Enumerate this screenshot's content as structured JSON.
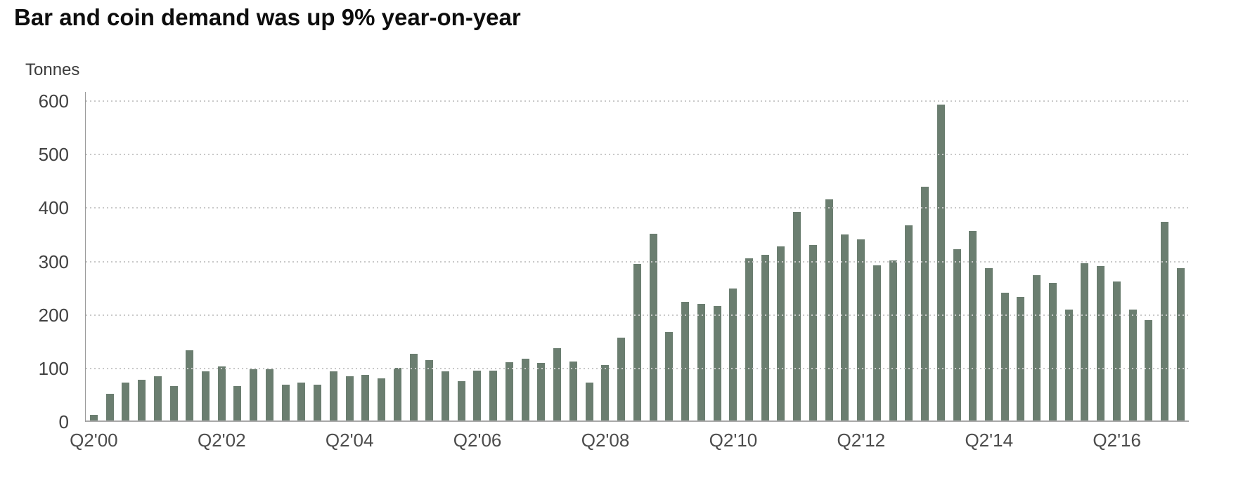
{
  "header": {
    "title": "Bar and coin demand was up 9% year-on-year"
  },
  "chart_data": {
    "type": "bar",
    "title": "Bar and coin demand was up 9% year-on-year",
    "ylabel": "Tonnes",
    "xlabel": "",
    "unit_label": "Tonnes",
    "bar_color": "#6B7E70",
    "grid": "horizontal-dotted",
    "legend": "none",
    "ylim": [
      0,
      600
    ],
    "yticks": [
      0,
      100,
      200,
      300,
      400,
      500,
      600
    ],
    "x_tick_every": 8,
    "x_tick_labels": [
      "Q2'00",
      "Q2'02",
      "Q2'04",
      "Q2'06",
      "Q2'08",
      "Q2'10",
      "Q2'12",
      "Q2'14",
      "Q2'16"
    ],
    "x": [
      "Q2'00",
      "Q3'00",
      "Q4'00",
      "Q1'01",
      "Q2'01",
      "Q3'01",
      "Q4'01",
      "Q1'02",
      "Q2'02",
      "Q3'02",
      "Q4'02",
      "Q1'03",
      "Q2'03",
      "Q3'03",
      "Q4'03",
      "Q1'04",
      "Q2'04",
      "Q3'04",
      "Q4'04",
      "Q1'05",
      "Q2'05",
      "Q3'05",
      "Q4'05",
      "Q1'06",
      "Q2'06",
      "Q3'06",
      "Q4'06",
      "Q1'07",
      "Q2'07",
      "Q3'07",
      "Q4'07",
      "Q1'08",
      "Q2'08",
      "Q3'08",
      "Q4'08",
      "Q1'09",
      "Q2'09",
      "Q3'09",
      "Q4'09",
      "Q1'10",
      "Q2'10",
      "Q3'10",
      "Q4'10",
      "Q1'11",
      "Q2'11",
      "Q3'11",
      "Q4'11",
      "Q1'12",
      "Q2'12",
      "Q3'12",
      "Q4'12",
      "Q1'13",
      "Q2'13",
      "Q3'13",
      "Q4'13",
      "Q1'14",
      "Q2'14",
      "Q3'14",
      "Q4'14",
      "Q1'15",
      "Q2'15",
      "Q3'15",
      "Q4'15",
      "Q1'16",
      "Q2'16",
      "Q3'16",
      "Q4'16",
      "Q1'17",
      "Q2'17"
    ],
    "values": [
      13,
      52,
      74,
      79,
      86,
      67,
      134,
      95,
      104,
      67,
      99,
      99,
      69,
      73,
      69,
      94,
      85,
      88,
      82,
      101,
      128,
      116,
      94,
      76,
      96,
      96,
      112,
      118,
      110,
      138,
      113,
      73,
      106,
      158,
      295,
      352,
      168,
      225,
      220,
      216,
      250,
      306,
      312,
      328,
      392,
      331,
      416,
      350,
      342,
      293,
      302,
      368,
      440,
      593,
      323,
      357,
      288,
      241,
      234,
      275,
      260,
      210,
      297,
      291,
      263,
      210,
      190,
      374,
      287
    ]
  }
}
